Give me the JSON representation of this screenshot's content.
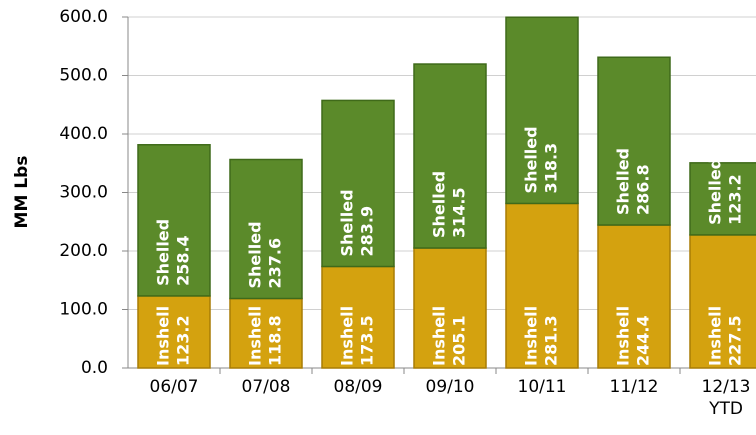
{
  "chart_data": {
    "type": "stacked_bar",
    "categories": [
      "06/07",
      "07/08",
      "08/09",
      "09/10",
      "10/11",
      "11/12",
      "12/13 YTD"
    ],
    "series": [
      {
        "name": "Inshell",
        "color": "#d4a20f",
        "values": [
          123.2,
          118.8,
          173.5,
          205.1,
          281.3,
          244.4,
          227.5
        ]
      },
      {
        "name": "Shelled",
        "color": "#5b8a2a",
        "values": [
          258.4,
          237.6,
          283.9,
          314.5,
          318.3,
          286.8,
          123.2
        ]
      }
    ],
    "ylabel": "MM Lbs",
    "ylim": [
      0,
      600
    ],
    "yticks": [
      {
        "value": 0,
        "label": "0.0"
      },
      {
        "value": 100,
        "label": "100.0"
      },
      {
        "value": 200,
        "label": "200.0"
      },
      {
        "value": 300,
        "label": "300.0"
      },
      {
        "value": 400,
        "label": "400.0"
      },
      {
        "value": 500,
        "label": "500.0"
      },
      {
        "value": 600,
        "label": "600.0"
      }
    ],
    "grid": true
  }
}
